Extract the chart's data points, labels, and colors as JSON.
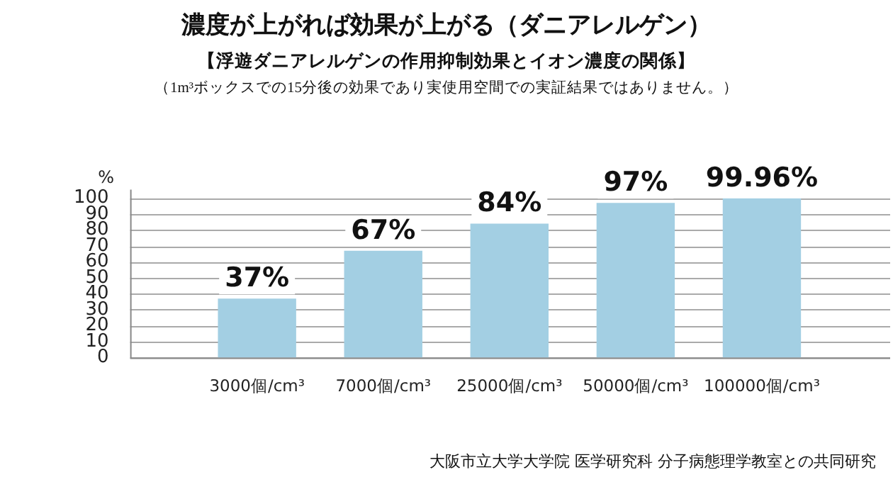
{
  "chart_data": {
    "type": "bar",
    "title": "濃度が上がれば効果が上がる（ダニアレルゲン）",
    "subtitle": "【浮遊ダニアレルゲンの作用抑制効果とイオン濃度の関係】",
    "annotations": [
      "（1m³ボックスでの15分後の効果であり実使用空間での実証結果ではありません。）",
      "大阪市立大学大学院 医学研究科 分子病態理学教室との共同研究"
    ],
    "ylabel": "%",
    "categories": [
      "3000個/cm³",
      "7000個/cm³",
      "25000個/cm³",
      "50000個/cm³",
      "100000個/cm³"
    ],
    "values": [
      37,
      67,
      84,
      97,
      99.96
    ],
    "value_labels": [
      "37%",
      "67%",
      "84%",
      "97%",
      "99.96%"
    ],
    "color": "#a3cfe3",
    "ylim": [
      0,
      100
    ],
    "yticks": [
      0,
      10,
      20,
      30,
      40,
      50,
      60,
      70,
      80,
      90,
      100
    ],
    "grid": "y",
    "legend": false
  }
}
